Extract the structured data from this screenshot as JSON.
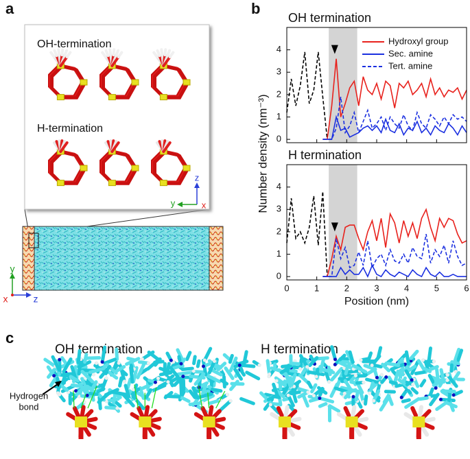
{
  "figure": {
    "panel_labels": [
      "a",
      "b",
      "c"
    ],
    "panel_a": {
      "top_label": "OH-termination",
      "bottom_label": "H-termination",
      "inset_axes": [
        "z",
        "y",
        "x"
      ],
      "box_axes": [
        "y",
        "x",
        "z"
      ]
    },
    "panel_c": {
      "left_title": "OH termination",
      "right_title": "H termination",
      "callout": [
        "Hydrogen",
        "bond"
      ]
    }
  },
  "chart_data": [
    {
      "type": "line",
      "title": "OH termination",
      "ylabel": "Number density (nm⁻³)",
      "x": [
        0,
        0.15,
        0.3,
        0.45,
        0.6,
        0.75,
        0.9,
        1.05,
        1.2,
        1.35,
        1.5,
        1.65,
        1.8,
        1.95,
        2.1,
        2.25,
        2.4,
        2.55,
        2.7,
        2.85,
        3.0,
        3.15,
        3.3,
        3.45,
        3.6,
        3.75,
        3.9,
        4.05,
        4.2,
        4.35,
        4.5,
        4.65,
        4.8,
        4.95,
        5.1,
        5.25,
        5.4,
        5.55,
        5.7,
        5.85,
        6.0
      ],
      "xlim": [
        0,
        6
      ],
      "xticks": [
        0,
        1,
        2,
        3,
        4,
        5,
        6
      ],
      "xtick_labels": false,
      "ylim": [
        -0.15,
        5
      ],
      "yticks": [
        0,
        1,
        2,
        3,
        4
      ],
      "shaded_span": [
        1.4,
        2.35
      ],
      "marker": {
        "x": 1.6,
        "y": 4.0
      },
      "legend": "upper right",
      "series": [
        {
          "color": "#000000",
          "dash": true,
          "values": [
            1.2,
            2.7,
            1.5,
            2.4,
            3.9,
            1.6,
            2.2,
            3.9,
            1.9,
            0,
            null,
            null,
            null,
            null,
            null,
            null,
            null,
            null,
            null,
            null,
            null,
            null,
            null,
            null,
            null,
            null,
            null,
            null,
            null,
            null,
            null,
            null,
            null,
            null,
            null,
            null,
            null,
            null,
            null,
            null,
            null
          ]
        },
        {
          "name": "Hydroxyl group",
          "color": "#e8211c",
          "dash": false,
          "values": [
            null,
            null,
            null,
            null,
            null,
            null,
            null,
            null,
            0,
            0,
            1.5,
            3.6,
            1.0,
            1.6,
            2.3,
            2.6,
            1.5,
            2.8,
            2.2,
            2.0,
            2.5,
            1.8,
            2.6,
            2.4,
            1.4,
            2.5,
            2.3,
            2.6,
            2.0,
            2.2,
            2.5,
            1.9,
            2.7,
            2.0,
            2.3,
            1.9,
            2.2,
            2.1,
            2.3,
            1.8,
            2.2
          ]
        },
        {
          "name": "Sec. amine",
          "color": "#1a2fe0",
          "dash": false,
          "values": [
            null,
            null,
            null,
            null,
            null,
            null,
            null,
            null,
            0,
            0,
            0,
            1.0,
            0.4,
            0.5,
            0.1,
            0.2,
            0.3,
            0.5,
            0.6,
            0.4,
            0.6,
            0.3,
            0.9,
            0.4,
            0.3,
            0.7,
            0.2,
            0.5,
            0.4,
            0.8,
            0.3,
            0.5,
            0.2,
            0.6,
            0.4,
            0.3,
            0.7,
            0.5,
            0.2,
            0.6,
            0.3
          ]
        },
        {
          "name": "Tert. amine",
          "color": "#1a2fe0",
          "dash": true,
          "values": [
            null,
            null,
            null,
            null,
            null,
            null,
            null,
            null,
            0,
            0,
            0,
            0.5,
            1.9,
            0.3,
            0.6,
            1.2,
            0.3,
            0.8,
            1.3,
            0.5,
            0.7,
            1.0,
            0.4,
            1.0,
            0.7,
            0.5,
            1.1,
            0.6,
            0.4,
            1.2,
            0.7,
            0.5,
            1.1,
            0.9,
            0.6,
            1.0,
            0.7,
            1.1,
            0.9,
            1.0,
            0.8
          ]
        }
      ]
    },
    {
      "type": "line",
      "title": "H termination",
      "xlabel": "Position (nm)",
      "x": [
        0,
        0.15,
        0.3,
        0.45,
        0.6,
        0.75,
        0.9,
        1.05,
        1.2,
        1.35,
        1.5,
        1.65,
        1.8,
        1.95,
        2.1,
        2.25,
        2.4,
        2.55,
        2.7,
        2.85,
        3.0,
        3.15,
        3.3,
        3.45,
        3.6,
        3.75,
        3.9,
        4.05,
        4.2,
        4.35,
        4.5,
        4.65,
        4.8,
        4.95,
        5.1,
        5.25,
        5.4,
        5.55,
        5.7,
        5.85,
        6.0
      ],
      "xlim": [
        0,
        6
      ],
      "xticks": [
        0,
        1,
        2,
        3,
        4,
        5,
        6
      ],
      "xtick_labels": true,
      "ylim": [
        -0.15,
        5
      ],
      "yticks": [
        0,
        1,
        2,
        3,
        4
      ],
      "shaded_span": [
        1.4,
        2.35
      ],
      "marker": {
        "x": 1.6,
        "y": 2.2
      },
      "series": [
        {
          "color": "#000000",
          "dash": true,
          "values": [
            1.5,
            3.5,
            1.7,
            2.0,
            1.5,
            2.2,
            3.6,
            1.4,
            3.8,
            0,
            null,
            null,
            null,
            null,
            null,
            null,
            null,
            null,
            null,
            null,
            null,
            null,
            null,
            null,
            null,
            null,
            null,
            null,
            null,
            null,
            null,
            null,
            null,
            null,
            null,
            null,
            null,
            null,
            null,
            null,
            null
          ]
        },
        {
          "color": "#e8211c",
          "dash": false,
          "values": [
            null,
            null,
            null,
            null,
            null,
            null,
            null,
            null,
            0,
            0,
            0.8,
            1.8,
            1.2,
            2.2,
            2.3,
            2.3,
            1.7,
            1.2,
            2.0,
            2.5,
            1.6,
            2.6,
            1.3,
            2.8,
            2.4,
            1.5,
            2.5,
            1.8,
            2.4,
            1.7,
            2.6,
            3.0,
            2.2,
            1.6,
            2.6,
            2.2,
            2.6,
            2.5,
            1.9,
            1.5,
            1.6
          ]
        },
        {
          "color": "#1a2fe0",
          "dash": false,
          "values": [
            null,
            null,
            null,
            null,
            null,
            null,
            null,
            null,
            0,
            0,
            0,
            0,
            0.4,
            0.1,
            0.3,
            0.1,
            0.1,
            0.4,
            0.0,
            0.5,
            0.1,
            0.0,
            0.3,
            0.1,
            0.0,
            0.2,
            0.1,
            0.0,
            0.3,
            0.1,
            0.0,
            0.4,
            0.1,
            0.0,
            0.2,
            0.0,
            0.0,
            0.1,
            0.0,
            0.0,
            0.0
          ]
        },
        {
          "color": "#1a2fe0",
          "dash": true,
          "values": [
            null,
            null,
            null,
            null,
            null,
            null,
            null,
            null,
            0,
            0,
            0,
            1.7,
            0.8,
            1.3,
            0.4,
            0.5,
            1.1,
            0.5,
            1.6,
            0.4,
            0.8,
            1.0,
            0.5,
            1.2,
            0.7,
            0.6,
            1.0,
            0.6,
            1.3,
            0.9,
            0.8,
            1.9,
            0.6,
            1.2,
            0.9,
            1.4,
            0.6,
            1.6,
            0.9,
            0.5,
            0.6
          ]
        }
      ]
    }
  ]
}
